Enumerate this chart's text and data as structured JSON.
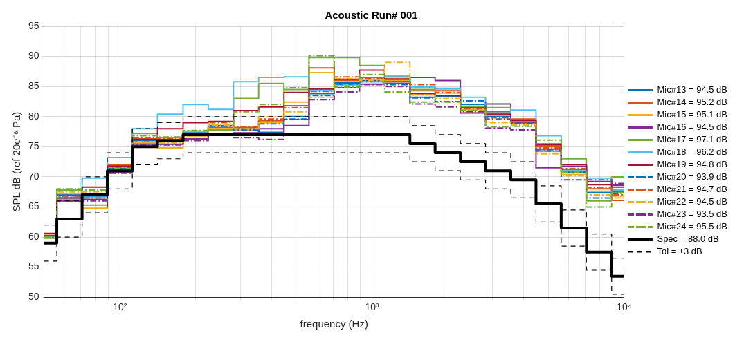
{
  "chart_data": {
    "type": "step",
    "title": "Acoustic Run# 001",
    "xlabel": "frequency (Hz)",
    "ylabel": "SPL dB (ref 20e⁻⁶ Pa)",
    "log": "x",
    "grid": true,
    "legend": "right",
    "marker": "none",
    "xlim": [
      50,
      10000
    ],
    "ylim": [
      50,
      95
    ],
    "xticks": [
      {
        "value": 60,
        "label": null
      },
      {
        "value": 70,
        "label": null
      },
      {
        "value": 80,
        "label": null
      },
      {
        "value": 90,
        "label": null
      },
      {
        "value": 100,
        "label": "10²"
      },
      {
        "value": 200,
        "label": null
      },
      {
        "value": 300,
        "label": null
      },
      {
        "value": 400,
        "label": null
      },
      {
        "value": 500,
        "label": null
      },
      {
        "value": 600,
        "label": null
      },
      {
        "value": 700,
        "label": null
      },
      {
        "value": 800,
        "label": null
      },
      {
        "value": 900,
        "label": null
      },
      {
        "value": 1000,
        "label": "10³"
      },
      {
        "value": 2000,
        "label": null
      },
      {
        "value": 3000,
        "label": null
      },
      {
        "value": 4000,
        "label": null
      },
      {
        "value": 5000,
        "label": null
      },
      {
        "value": 6000,
        "label": null
      },
      {
        "value": 7000,
        "label": null
      },
      {
        "value": 8000,
        "label": null
      },
      {
        "value": 9000,
        "label": null
      },
      {
        "value": 10000,
        "label": "10⁴"
      }
    ],
    "yticks": [
      50,
      55,
      60,
      65,
      70,
      75,
      80,
      85,
      90,
      95
    ],
    "x": [
      50,
      56.2,
      70.8,
      89.1,
      112,
      141,
      178,
      224,
      282,
      355,
      447,
      562,
      708,
      891,
      1122,
      1413,
      1778,
      2239,
      2818,
      3548,
      4467,
      5623,
      7079,
      8913,
      10000
    ],
    "series": [
      {
        "name": "Mic#13 = 94.5 dB",
        "color": "#0072bd",
        "line_style": "solid",
        "values": [
          60,
          67,
          66.8,
          71.4,
          76,
          76,
          77.3,
          78.5,
          78,
          77.4,
          80,
          83.8,
          85.6,
          86,
          85.5,
          83.2,
          83.4,
          82,
          80,
          79.2,
          74.6,
          70.8,
          67.4,
          67.5,
          67.5
        ]
      },
      {
        "name": "Mic#14 = 95.2 dB",
        "color": "#d95319",
        "line_style": "solid",
        "values": [
          60.3,
          66.5,
          66.5,
          72,
          76.3,
          76.2,
          77,
          78.2,
          78.2,
          79.3,
          81.8,
          88.1,
          86,
          86.5,
          86.3,
          84.3,
          84.3,
          81.5,
          80.8,
          79.6,
          75,
          71.2,
          68,
          66.1,
          66.1
        ]
      },
      {
        "name": "Mic#15 = 95.1 dB",
        "color": "#edb120",
        "line_style": "solid",
        "values": [
          60,
          67.2,
          64.8,
          71.2,
          75.6,
          74.8,
          76.6,
          78,
          77.8,
          79,
          82.4,
          87.3,
          85.2,
          86.2,
          86,
          83.6,
          83.9,
          81.2,
          80.2,
          78.8,
          74.2,
          70.4,
          67.6,
          66.8,
          66.8
        ]
      },
      {
        "name": "Mic#16 = 94.5 dB",
        "color": "#7e2f8e",
        "line_style": "solid",
        "values": [
          60.2,
          66,
          66.2,
          70.8,
          75.4,
          75.4,
          76.3,
          77,
          77.3,
          78,
          78.5,
          84.3,
          84.8,
          85.4,
          86.2,
          86.5,
          86,
          81.6,
          82.1,
          79,
          71.5,
          71.7,
          69.2,
          68.6,
          68.6
        ]
      },
      {
        "name": "Mic#17 = 97.1 dB",
        "color": "#77ac30",
        "line_style": "solid",
        "values": [
          59.8,
          67.8,
          65.3,
          71,
          77.2,
          76.5,
          77.6,
          77.8,
          83,
          85.5,
          84.5,
          89.8,
          89.8,
          88.5,
          86.7,
          84.5,
          84.7,
          81.7,
          81.5,
          79.2,
          75.5,
          73,
          66,
          70,
          70
        ]
      },
      {
        "name": "Mic#18 = 96.2 dB",
        "color": "#4dbeee",
        "line_style": "solid",
        "values": [
          60,
          66.3,
          69.8,
          73.2,
          78,
          80.4,
          82,
          81.2,
          85.8,
          86.5,
          86.6,
          84.4,
          85.3,
          85.8,
          86.6,
          84.9,
          84.6,
          83.2,
          80.6,
          81.1,
          76.8,
          71,
          69.8,
          67.8,
          67.8
        ]
      },
      {
        "name": "Mic#19 = 94.8 dB",
        "color": "#a2142f",
        "line_style": "solid",
        "values": [
          60.6,
          66.5,
          68.3,
          71.8,
          76.2,
          78,
          79,
          79.2,
          81,
          81.6,
          84,
          84.6,
          86.2,
          87.7,
          85.8,
          83.8,
          83.5,
          80.6,
          80.4,
          79.4,
          75.3,
          72,
          68.7,
          68.3,
          68.3
        ]
      },
      {
        "name": "Mic#20 = 93.9 dB",
        "color": "#0072bd",
        "line_style": "dashed",
        "values": [
          60,
          66.8,
          66.5,
          71.4,
          76,
          75.8,
          77,
          78.4,
          77.8,
          78.8,
          79.6,
          83.5,
          85.4,
          85.8,
          85.3,
          83.1,
          82.5,
          82.6,
          79.6,
          78.9,
          74.5,
          69.5,
          66.5,
          67.2,
          67.2
        ]
      },
      {
        "name": "Mic#21 = 94.7 dB",
        "color": "#d95319",
        "line_style": "dashed",
        "values": [
          60,
          66.6,
          67,
          71.6,
          76.5,
          76.3,
          77.2,
          79,
          78.3,
          79.6,
          81.5,
          84.2,
          86.6,
          86.3,
          85.8,
          85.3,
          84,
          81.3,
          79.8,
          79.1,
          74.8,
          71.4,
          68.2,
          67,
          67
        ]
      },
      {
        "name": "Mic#22 = 94.5 dB",
        "color": "#edb120",
        "line_style": "dashed",
        "values": [
          60,
          67.5,
          67.5,
          71.2,
          75.8,
          75.6,
          76.8,
          78.6,
          78,
          80,
          80.8,
          83.2,
          86.3,
          86,
          89,
          83.6,
          83,
          81.1,
          79,
          78.6,
          73.8,
          70.2,
          67,
          66.5,
          66.5
        ]
      },
      {
        "name": "Mic#23 = 93.5 dB",
        "color": "#7e2f8e",
        "line_style": "dashed",
        "values": [
          60,
          66,
          66,
          70.6,
          75.3,
          75.3,
          76,
          77,
          76.5,
          76.2,
          79.5,
          82.8,
          84.1,
          85.3,
          85,
          82.1,
          81.6,
          80.8,
          78.1,
          77.8,
          74.3,
          71.7,
          69.5,
          68.9,
          68.9
        ]
      },
      {
        "name": "Mic#24 = 95.5 dB",
        "color": "#77ac30",
        "line_style": "dashed",
        "values": [
          60,
          68,
          67.8,
          71.4,
          76.8,
          76.6,
          77.7,
          77.8,
          80.8,
          82,
          84.8,
          90.1,
          84.9,
          87,
          84.1,
          82.4,
          82.4,
          81,
          78.3,
          78.4,
          76.1,
          70.8,
          65,
          67.4,
          67.4
        ]
      },
      {
        "name": "Spec = 88.0 dB",
        "color": "#000000",
        "line_style": "solid",
        "values": [
          59,
          63,
          67,
          71,
          75,
          76,
          77,
          77,
          77,
          77,
          77,
          77,
          77,
          77,
          77,
          75.5,
          74,
          72.5,
          71,
          69.5,
          65.5,
          61.5,
          57.5,
          53.5,
          53.5
        ]
      },
      {
        "name": "Tol = ±3 dB",
        "color": "#000000",
        "line_style": "dotted",
        "values": [
          62,
          66,
          70,
          74,
          78,
          79,
          80,
          80,
          80,
          80,
          80,
          80,
          80,
          80,
          80,
          78.5,
          77,
          75.5,
          74,
          72.5,
          68.5,
          64.5,
          60.5,
          56.5,
          56.5
        ]
      },
      {
        "color": "#000000",
        "line_style": "dotted",
        "values": [
          56,
          60,
          64,
          68,
          72,
          73,
          74,
          74,
          74,
          74,
          74,
          74,
          74,
          74,
          74,
          72.5,
          71,
          69.5,
          68,
          66.5,
          62.5,
          58.5,
          54.5,
          50.5,
          50.5
        ]
      }
    ]
  }
}
